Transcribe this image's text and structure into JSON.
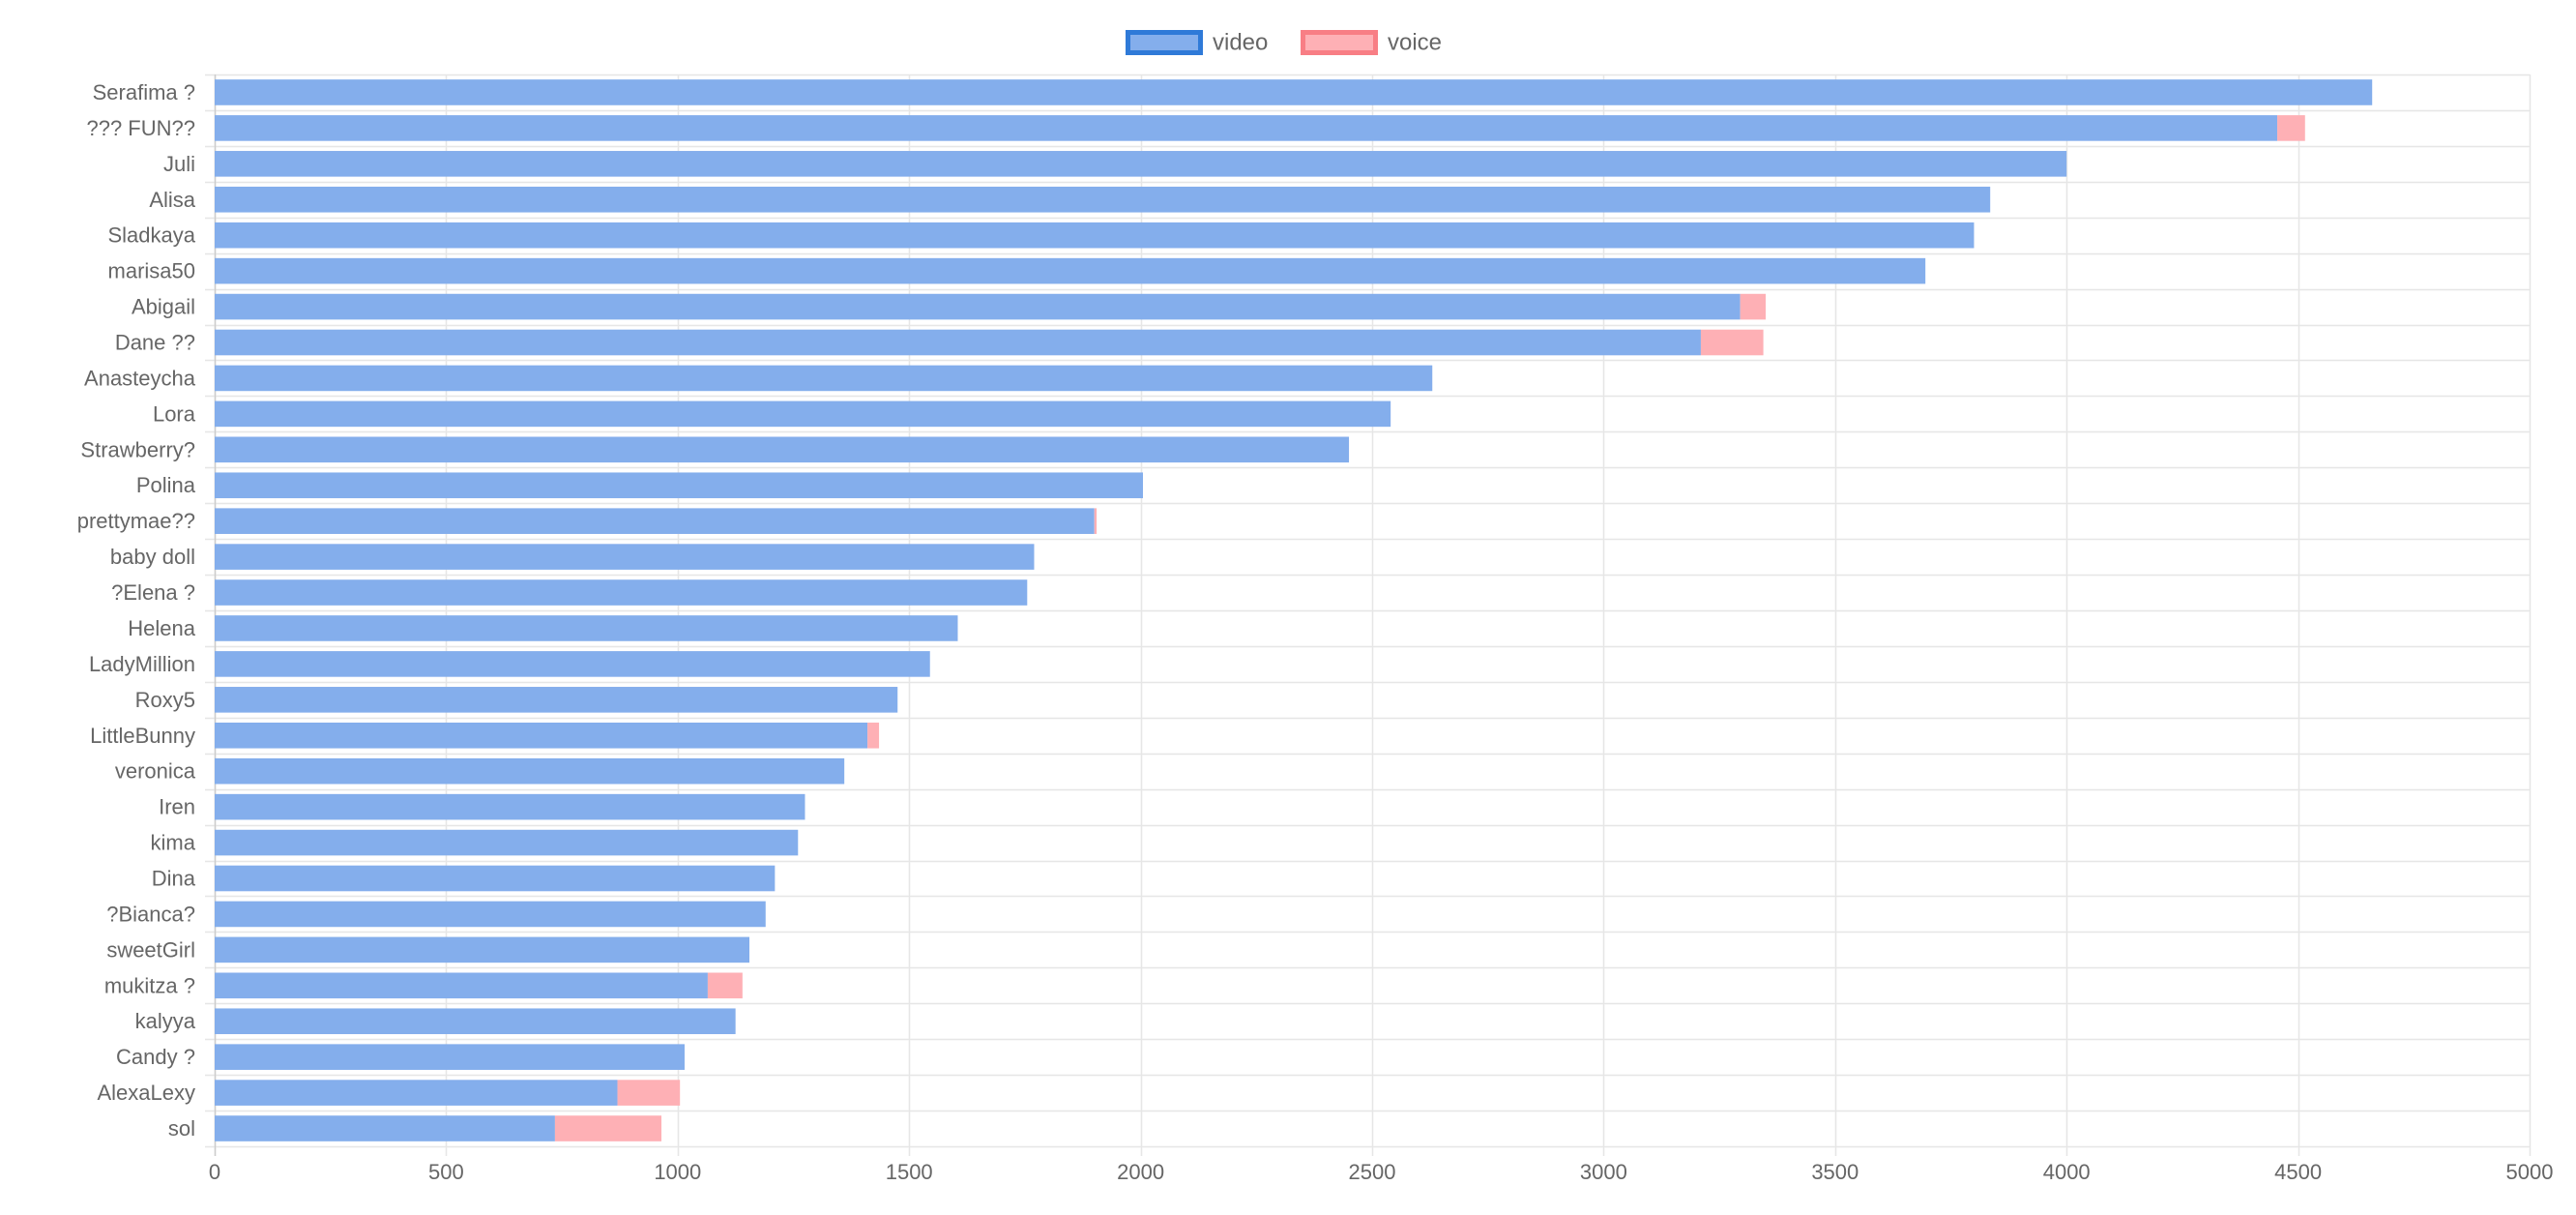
{
  "chart_data": {
    "type": "bar",
    "orientation": "horizontal",
    "stacked": true,
    "categories": [
      "Serafima ?",
      "??? FUN??",
      "Juli",
      "Alisa",
      "Sladkaya",
      "marisa50",
      "Abigail",
      "Dane ??",
      "Anasteycha",
      "Lora",
      "Strawberry?",
      "Polina",
      "prettymae??",
      "baby doll",
      "?Elena ?",
      "Helena",
      "LadyMillion",
      "Roxy5",
      "LittleBunny",
      "veronica",
      "Iren",
      "kima",
      "Dina",
      "?Bianca?",
      "sweetGirl",
      "mukitza ?",
      "kalyya",
      "Candy ?",
      "AlexaLexy",
      "sol"
    ],
    "series": [
      {
        "name": "video",
        "color": "#84aeec",
        "border_color": "#2f7ad8",
        "values": [
          4660,
          4455,
          4000,
          3835,
          3800,
          3695,
          3295,
          3210,
          2630,
          2540,
          2450,
          2005,
          1900,
          1770,
          1755,
          1605,
          1545,
          1475,
          1410,
          1360,
          1275,
          1260,
          1210,
          1190,
          1155,
          1065,
          1125,
          1015,
          870,
          735
        ]
      },
      {
        "name": "voice",
        "color": "#feb0b5",
        "border_color": "#f87e85",
        "values": [
          0,
          60,
          0,
          0,
          0,
          0,
          55,
          135,
          0,
          0,
          0,
          0,
          5,
          0,
          0,
          0,
          0,
          0,
          25,
          0,
          0,
          0,
          0,
          0,
          0,
          75,
          0,
          0,
          135,
          230
        ]
      }
    ],
    "xlim": [
      0,
      5000
    ],
    "xticks": [
      0,
      500,
      1000,
      1500,
      2000,
      2500,
      3000,
      3500,
      4000,
      4500,
      5000
    ],
    "title": "",
    "xlabel": "",
    "ylabel": "",
    "grid": true,
    "legend_position": "top-center"
  }
}
